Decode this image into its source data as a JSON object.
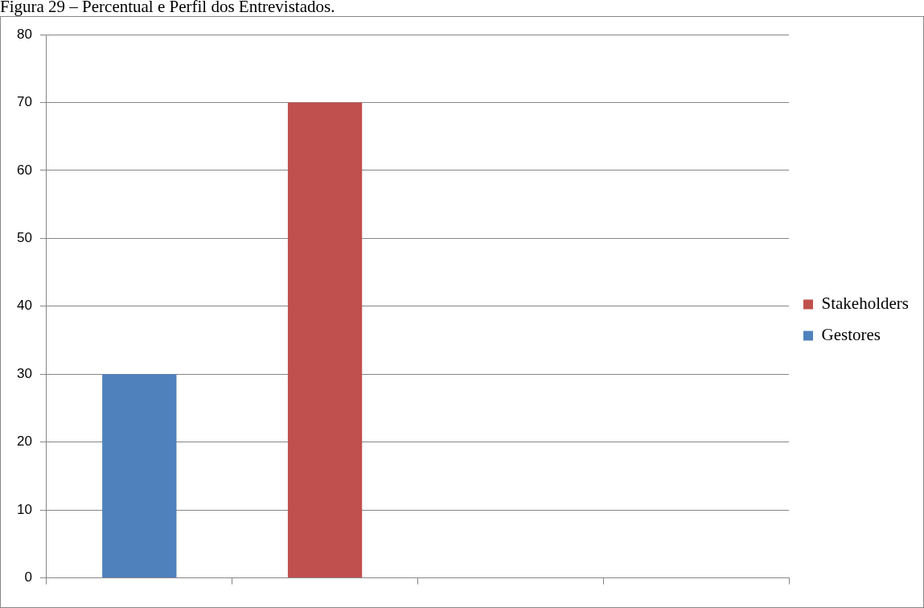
{
  "chart_data": {
    "type": "bar",
    "title": "Figura 29 – Percentual e Perfil dos Entrevistados.",
    "categories": [
      null,
      null,
      null,
      null
    ],
    "stacked": true,
    "series": [
      {
        "name": "Gestores",
        "color": "#4f81bd",
        "values": [
          30,
          null,
          null,
          null
        ]
      },
      {
        "name": "Stakeholders",
        "color": "#c0504d",
        "values": [
          null,
          70,
          null,
          null
        ]
      }
    ],
    "ylim": [
      0,
      80
    ],
    "yticks": [
      0,
      10,
      20,
      30,
      40,
      50,
      60,
      70,
      80
    ],
    "grid": "y",
    "legend": "right"
  }
}
